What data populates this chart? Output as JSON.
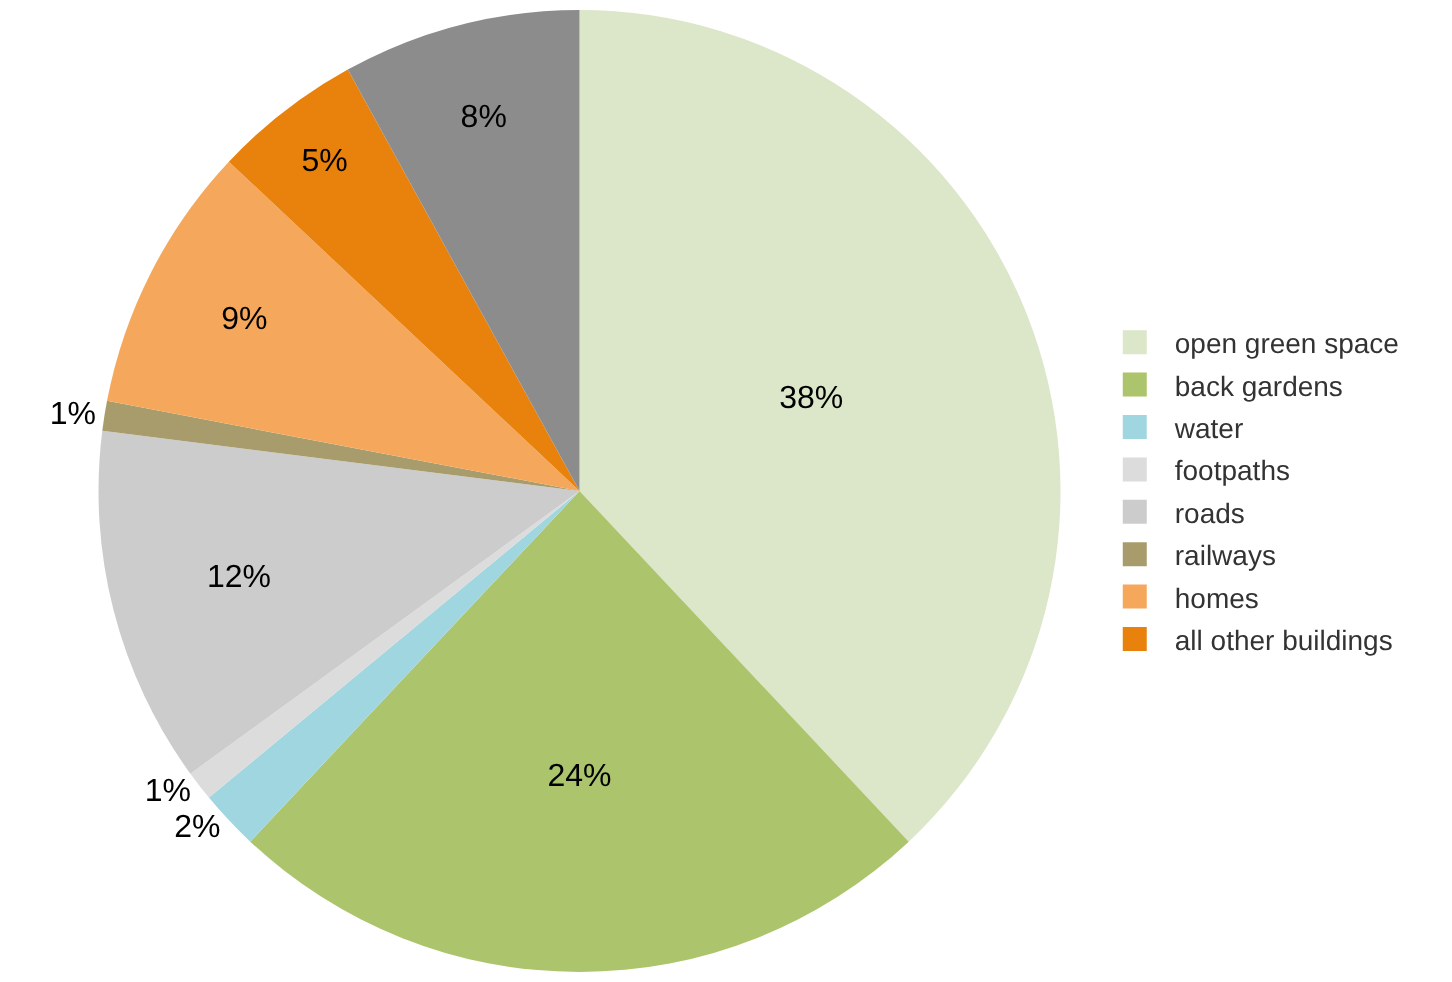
{
  "chart_data": {
    "type": "pie",
    "categories": [
      "open green space",
      "back gardens",
      "water",
      "footpaths",
      "roads",
      "railways",
      "homes",
      "all other buildings",
      null
    ],
    "values": [
      38,
      24,
      2,
      1,
      12,
      1,
      9,
      5,
      8
    ],
    "value_labels": [
      "38%",
      "24%",
      "2%",
      "1%",
      "12%",
      "1%",
      "9%",
      "5%",
      "8%"
    ],
    "colors": [
      "#dce6c8",
      "#acc46c",
      "#a0d6e0",
      "#dcdcdc",
      "#cccccc",
      "#a89c6c",
      "#f5a85c",
      "#e8820c",
      "#8c8c8c"
    ],
    "legend": "right"
  }
}
